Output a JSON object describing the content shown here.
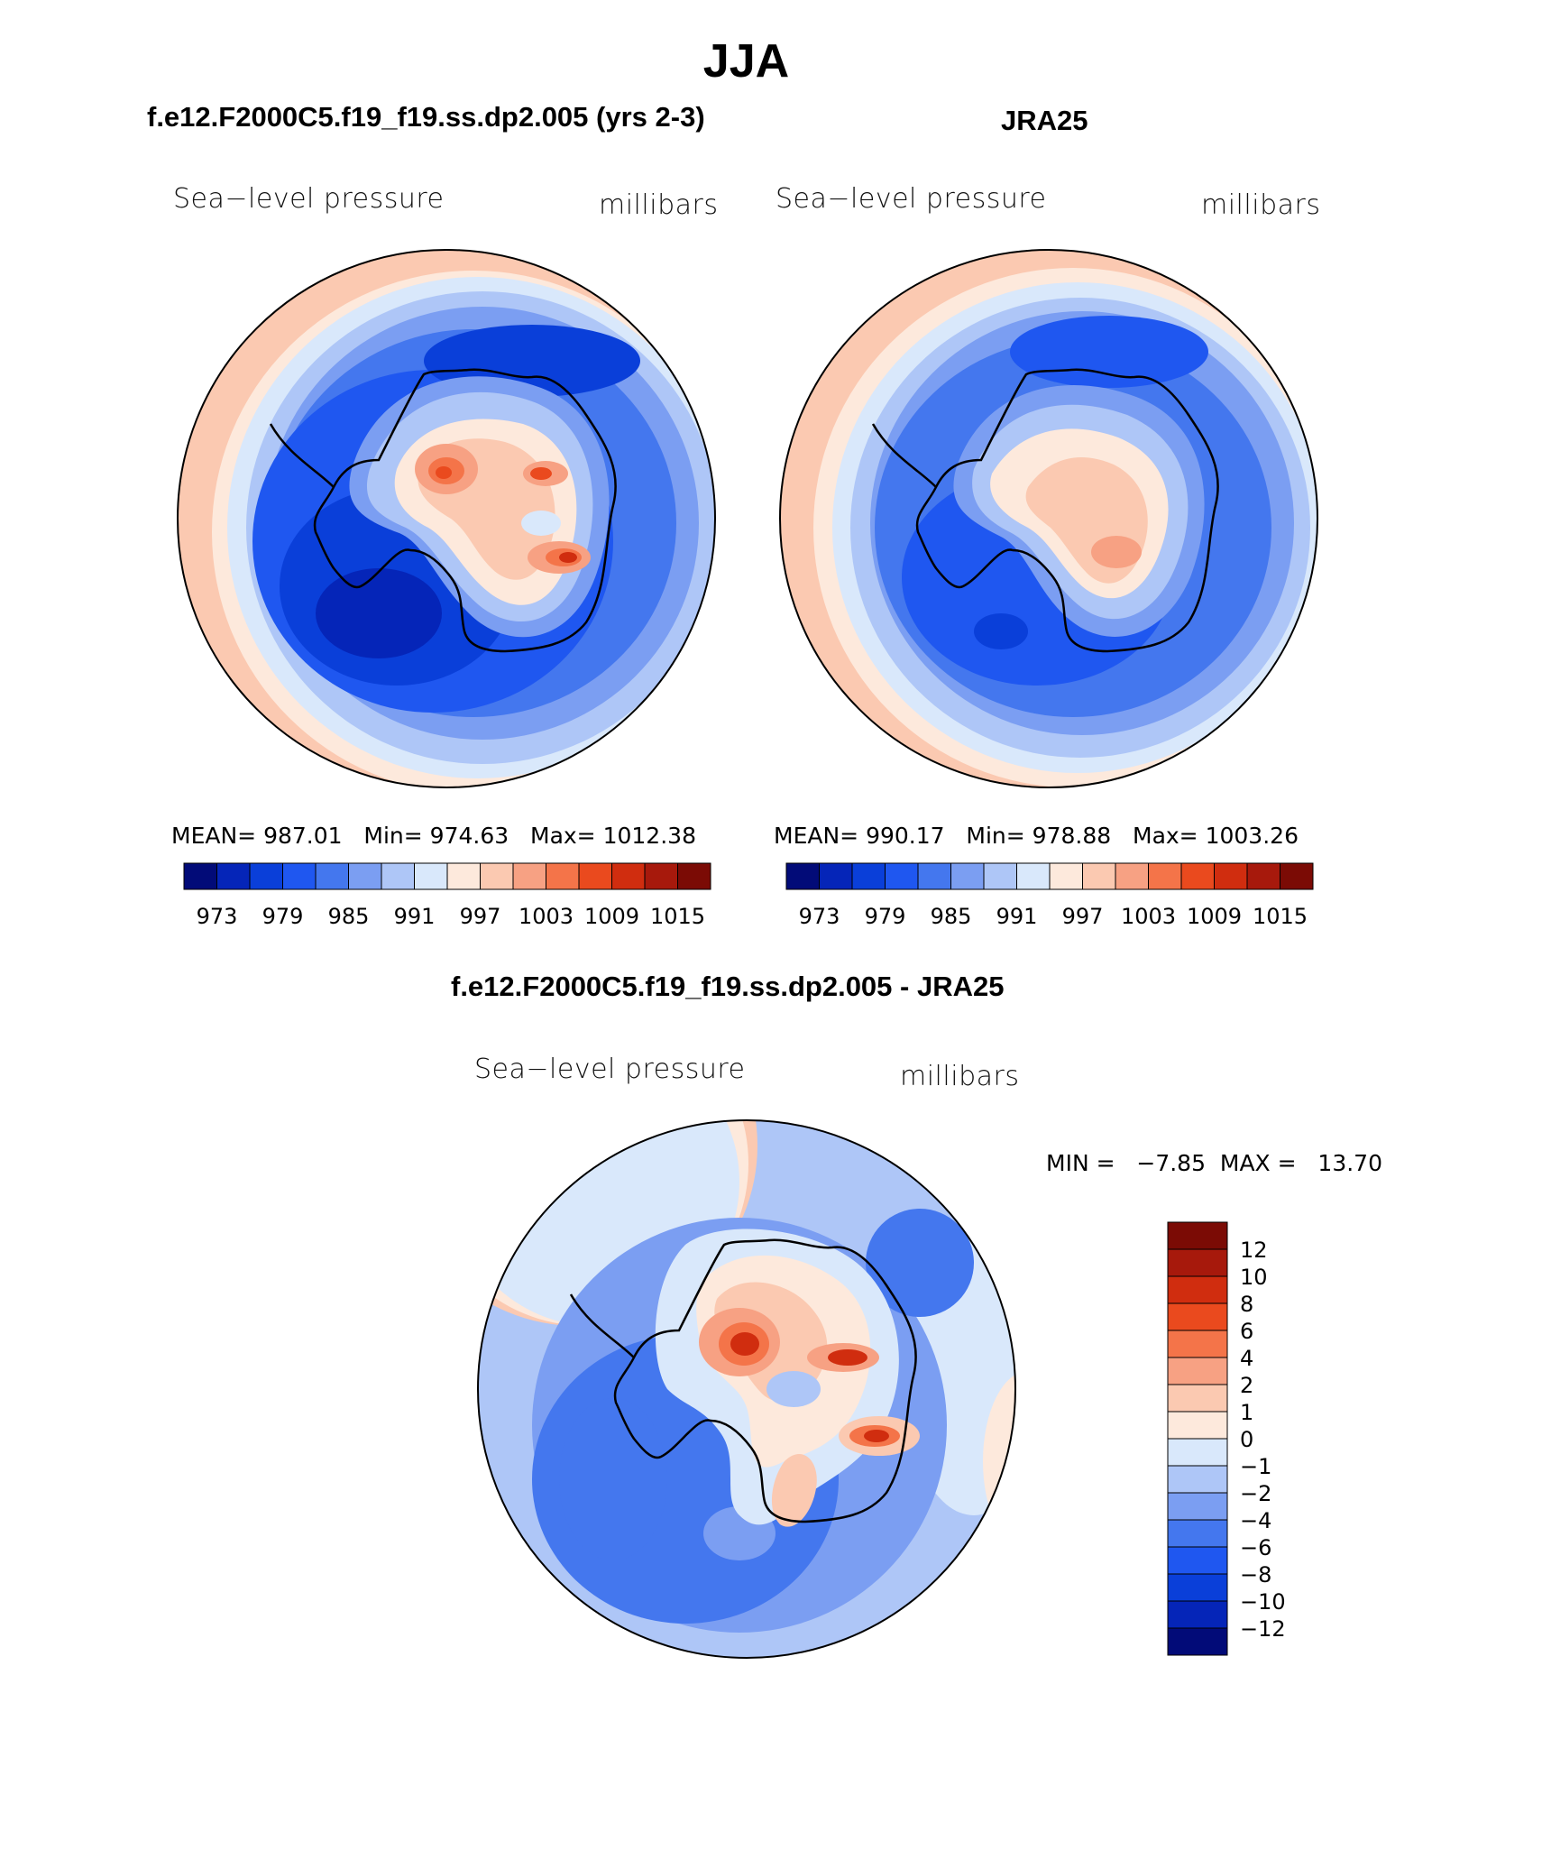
{
  "title": "JJA",
  "panels": {
    "model": {
      "heading": "f.e12.F2000C5.f19_f19.ss.dp2.005 (yrs 2-3)",
      "variable": "Sea−level pressure",
      "units": "millibars",
      "mean_label": "MEAN=",
      "mean": "987.01",
      "min_label": "Min=",
      "min": "974.63",
      "max_label": "Max=",
      "max": "1012.38"
    },
    "obs": {
      "heading": "JRA25",
      "variable": "Sea−level pressure",
      "units": "millibars",
      "mean_label": "MEAN=",
      "mean": "990.17",
      "min_label": "Min=",
      "min": "978.88",
      "max_label": "Max=",
      "max": "1003.26"
    },
    "diff": {
      "heading": "f.e12.F2000C5.f19_f19.ss.dp2.005 - JRA25",
      "variable": "Sea−level pressure",
      "units": "millibars",
      "minmax": "MIN =   −7.85  MAX =   13.70"
    }
  },
  "colorbar_abs": {
    "colors": [
      "#020b78",
      "#0525b8",
      "#0a3fd9",
      "#1f57f0",
      "#4477ee",
      "#7b9ef2",
      "#aec6f7",
      "#d9e8fb",
      "#fde9dc",
      "#fbc9b1",
      "#f7a183",
      "#f47449",
      "#ea4a1e",
      "#d02d0f",
      "#a7190c",
      "#7b0b05"
    ],
    "labels": [
      "973",
      "979",
      "985",
      "991",
      "997",
      "1003",
      "1009",
      "1015"
    ]
  },
  "colorbar_diff": {
    "colors": [
      "#7b0b05",
      "#a7190c",
      "#d02d0f",
      "#ea4a1e",
      "#f47449",
      "#f7a183",
      "#fbc9b1",
      "#fde9dc",
      "#d9e8fb",
      "#aec6f7",
      "#7b9ef2",
      "#4477ee",
      "#1f57f0",
      "#0a3fd9",
      "#0525b8",
      "#020b78"
    ],
    "labels": [
      "12",
      "10",
      "8",
      "6",
      "4",
      "2",
      "1",
      "0",
      "−1",
      "−2",
      "−4",
      "−6",
      "−8",
      "−10",
      "−12"
    ]
  }
}
